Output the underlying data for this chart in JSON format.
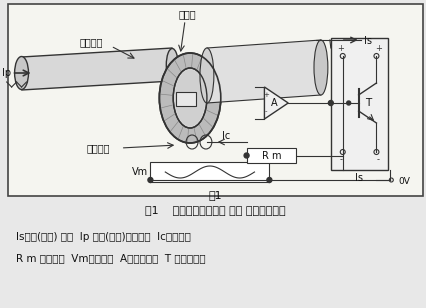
{
  "title": "图1",
  "caption": "图1    为闭环电流传感器 基本 结构及原理图",
  "description_line1": "Is补偿(付边) 电流  Ip 初级(原边)输入电流  Ic霍尔电势",
  "description_line2": "R m 测量电阻  Vm输出电压  A运算放大器  T 功率放大器",
  "bg_color": "#e8e8e8",
  "diagram_bg": "#f2f2f2",
  "border_color": "#444444",
  "text_color": "#111111",
  "label_color": "#111111",
  "line_color": "#333333"
}
